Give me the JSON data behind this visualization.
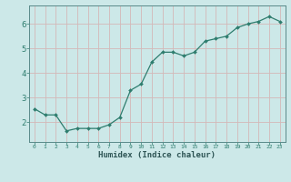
{
  "x": [
    0,
    1,
    2,
    3,
    4,
    5,
    6,
    7,
    8,
    9,
    10,
    11,
    12,
    13,
    14,
    15,
    16,
    17,
    18,
    19,
    20,
    21,
    22,
    23
  ],
  "y": [
    2.55,
    2.3,
    2.3,
    1.65,
    1.75,
    1.75,
    1.75,
    1.9,
    2.2,
    3.3,
    3.55,
    4.45,
    4.85,
    4.85,
    4.7,
    4.85,
    5.3,
    5.4,
    5.5,
    5.85,
    6.0,
    6.1,
    6.3,
    6.1
  ],
  "xlabel": "Humidex (Indice chaleur)",
  "xlim": [
    -0.5,
    23.5
  ],
  "ylim": [
    1.2,
    6.75
  ],
  "yticks": [
    2,
    3,
    4,
    5,
    6
  ],
  "xticks": [
    0,
    1,
    2,
    3,
    4,
    5,
    6,
    7,
    8,
    9,
    10,
    11,
    12,
    13,
    14,
    15,
    16,
    17,
    18,
    19,
    20,
    21,
    22,
    23
  ],
  "line_color": "#2e7d6e",
  "marker_color": "#2e7d6e",
  "bg_color": "#cce8e8",
  "grid_color": "#b8d4d4",
  "axis_bg": "#cce8e8",
  "border_color": "#5a8a8a",
  "tick_color": "#2e7d6e",
  "label_color": "#2e5555"
}
